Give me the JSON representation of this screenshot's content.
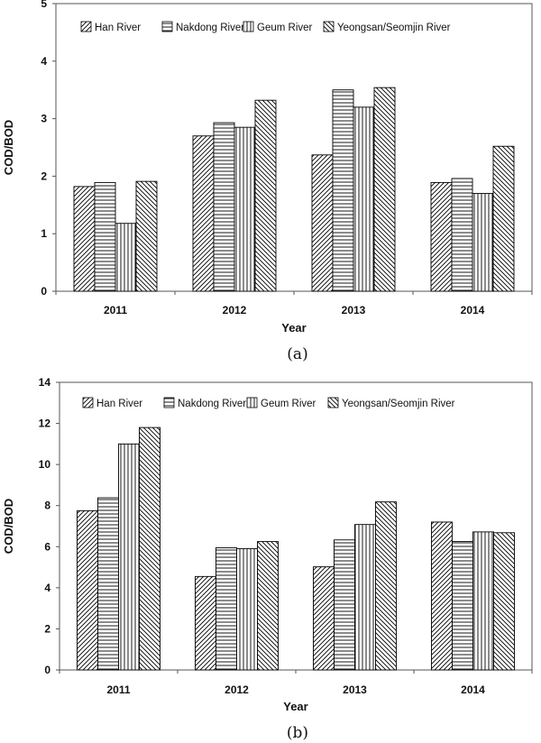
{
  "chart_data": [
    {
      "type": "bar",
      "categories": [
        "2011",
        "2012",
        "2013",
        "2014"
      ],
      "series": [
        {
          "name": "Han River",
          "values": [
            1.82,
            2.7,
            2.37,
            1.89
          ]
        },
        {
          "name": "Nakdong River",
          "values": [
            1.89,
            2.93,
            3.5,
            1.96
          ]
        },
        {
          "name": "Geum River",
          "values": [
            1.18,
            2.85,
            3.2,
            1.7
          ]
        },
        {
          "name": "Yeongsan/Seomjin River",
          "values": [
            1.91,
            3.32,
            3.54,
            2.52
          ]
        }
      ],
      "xlabel": "Year",
      "ylabel": "COD/BOD",
      "ylim": [
        0,
        5
      ],
      "yticks": [
        "0",
        "1",
        "2",
        "3",
        "4",
        "5"
      ],
      "grid": false,
      "legend": "top",
      "panel_label": "(a)"
    },
    {
      "type": "bar",
      "categories": [
        "2011",
        "2012",
        "2013",
        "2014"
      ],
      "series": [
        {
          "name": "Han River",
          "values": [
            7.75,
            4.55,
            5.02,
            7.2
          ]
        },
        {
          "name": "Nakdong River",
          "values": [
            8.38,
            5.95,
            6.33,
            6.25
          ]
        },
        {
          "name": "Geum River",
          "values": [
            11.0,
            5.9,
            7.08,
            6.72
          ]
        },
        {
          "name": "Yeongsan/Seomjin River",
          "values": [
            11.8,
            6.25,
            8.18,
            6.68
          ]
        }
      ],
      "xlabel": "Year",
      "ylabel": "COD/BOD",
      "ylim": [
        0,
        14
      ],
      "yticks": [
        "0",
        "2",
        "4",
        "6",
        "8",
        "10",
        "12",
        "14"
      ],
      "grid": false,
      "legend": "top",
      "panel_label": "(b)"
    }
  ],
  "patterns": [
    "diag-forward",
    "horizontal",
    "vertical",
    "diag-backward"
  ]
}
